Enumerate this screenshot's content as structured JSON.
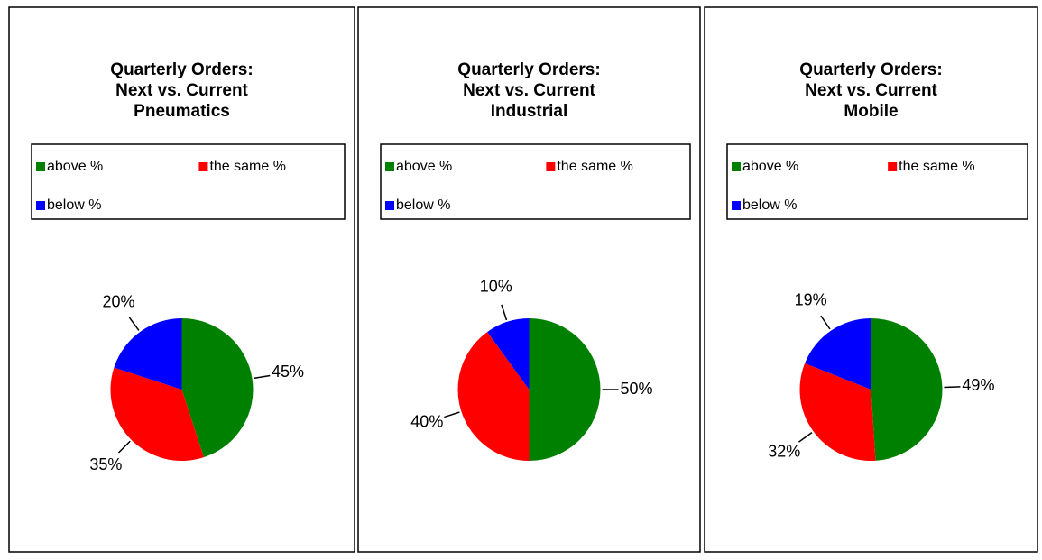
{
  "chart_data": [
    {
      "type": "pie",
      "title": [
        "Quarterly Orders:",
        "Next vs. Current",
        "Pneumatics"
      ],
      "categories": [
        "above %",
        "the same %",
        "below %"
      ],
      "values": [
        45,
        35,
        20
      ],
      "value_labels": [
        "45%",
        "35%",
        "20%"
      ],
      "colors": [
        "#008000",
        "#ff0000",
        "#0000ff"
      ]
    },
    {
      "type": "pie",
      "title": [
        "Quarterly Orders:",
        "Next vs. Current",
        "Industrial"
      ],
      "categories": [
        "above %",
        "the same %",
        "below %"
      ],
      "values": [
        50,
        40,
        10
      ],
      "value_labels": [
        "50%",
        "40%",
        "10%"
      ],
      "colors": [
        "#008000",
        "#ff0000",
        "#0000ff"
      ]
    },
    {
      "type": "pie",
      "title": [
        "Quarterly Orders:",
        "Next vs. Current",
        "Mobile"
      ],
      "categories": [
        "above %",
        "the same %",
        "below %"
      ],
      "values": [
        49,
        32,
        19
      ],
      "value_labels": [
        "49%",
        "32%",
        "19%"
      ],
      "colors": [
        "#008000",
        "#ff0000",
        "#0000ff"
      ]
    }
  ]
}
